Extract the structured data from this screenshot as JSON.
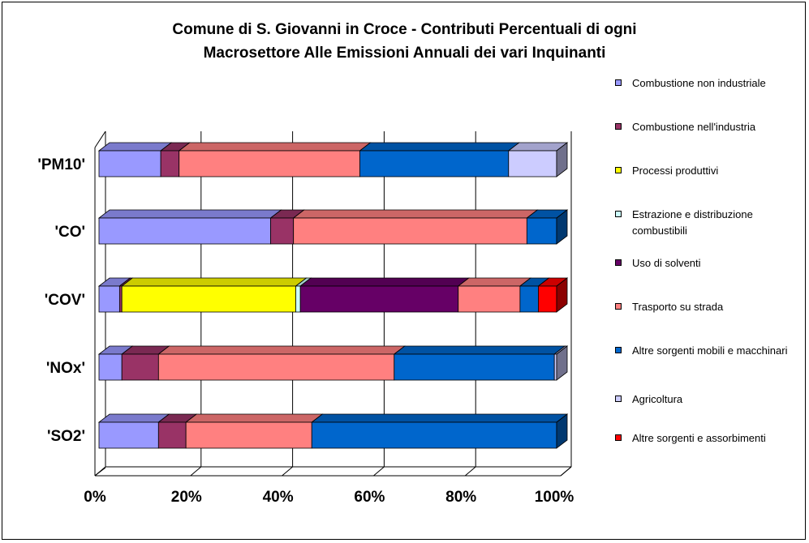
{
  "chart_data": {
    "type": "bar",
    "orientation": "horizontal",
    "stacked": "percent",
    "title_lines": [
      "Comune di S. Giovanni in Croce - Contributi Percentuali di ogni",
      "Macrosettore Alle Emissioni Annuali dei vari Inquinanti"
    ],
    "categories": [
      "'PM10'",
      "'CO'",
      "'COV'",
      "'NOx'",
      "'SO2'"
    ],
    "x_ticks": [
      "0%",
      "20%",
      "40%",
      "60%",
      "80%",
      "100%"
    ],
    "xlim": [
      0,
      100
    ],
    "grid": true,
    "legend_position": "right",
    "series": [
      {
        "name": "Combustione non industriale",
        "color": "#9999ff",
        "values": [
          13.5,
          37.5,
          4.5,
          5,
          13
        ]
      },
      {
        "name": "Combustione nell'industria",
        "color": "#993366",
        "values": [
          4,
          5,
          0.5,
          8,
          6
        ]
      },
      {
        "name": "Processi produttivi",
        "color": "#ffff00",
        "values": [
          0,
          0,
          38,
          0,
          0
        ]
      },
      {
        "name": "Estrazione e distribuzione combustibili",
        "color": "#ccffff",
        "values": [
          0,
          0,
          1,
          0,
          0
        ]
      },
      {
        "name": "Uso di solventi",
        "color": "#660066",
        "values": [
          0,
          0,
          34.5,
          0,
          0
        ]
      },
      {
        "name": "Trasporto su strada",
        "color": "#ff8080",
        "values": [
          39.5,
          51,
          13.5,
          51.5,
          27.5
        ]
      },
      {
        "name": "Altre sorgenti mobili e macchinari",
        "color": "#0066cc",
        "values": [
          32.5,
          6.5,
          4,
          35,
          53.5
        ]
      },
      {
        "name": "Agricoltura",
        "color": "#ccccff",
        "values": [
          10.5,
          0,
          0,
          0.5,
          0
        ]
      },
      {
        "name": "Altre sorgenti e assorbimenti",
        "color": "#ff0000",
        "values": [
          0,
          0,
          4,
          0,
          0
        ]
      }
    ]
  },
  "legend": {
    "items": [
      {
        "label": "Combustione non industriale",
        "color": "#9999ff"
      },
      {
        "label": "Combustione nell'industria",
        "color": "#993366"
      },
      {
        "label": "Processi produttivi",
        "color": "#ffff00"
      },
      {
        "label": "Estrazione e distribuzione combustibili",
        "color": "#ccffff"
      },
      {
        "label": "Uso di solventi",
        "color": "#660066"
      },
      {
        "label": "Trasporto su strada",
        "color": "#ff8080"
      },
      {
        "label": "Altre sorgenti mobili e macchinari",
        "color": "#0066cc"
      },
      {
        "label": "Agricoltura",
        "color": "#ccccff"
      },
      {
        "label": "Altre sorgenti e assorbimenti",
        "color": "#ff0000"
      }
    ]
  }
}
